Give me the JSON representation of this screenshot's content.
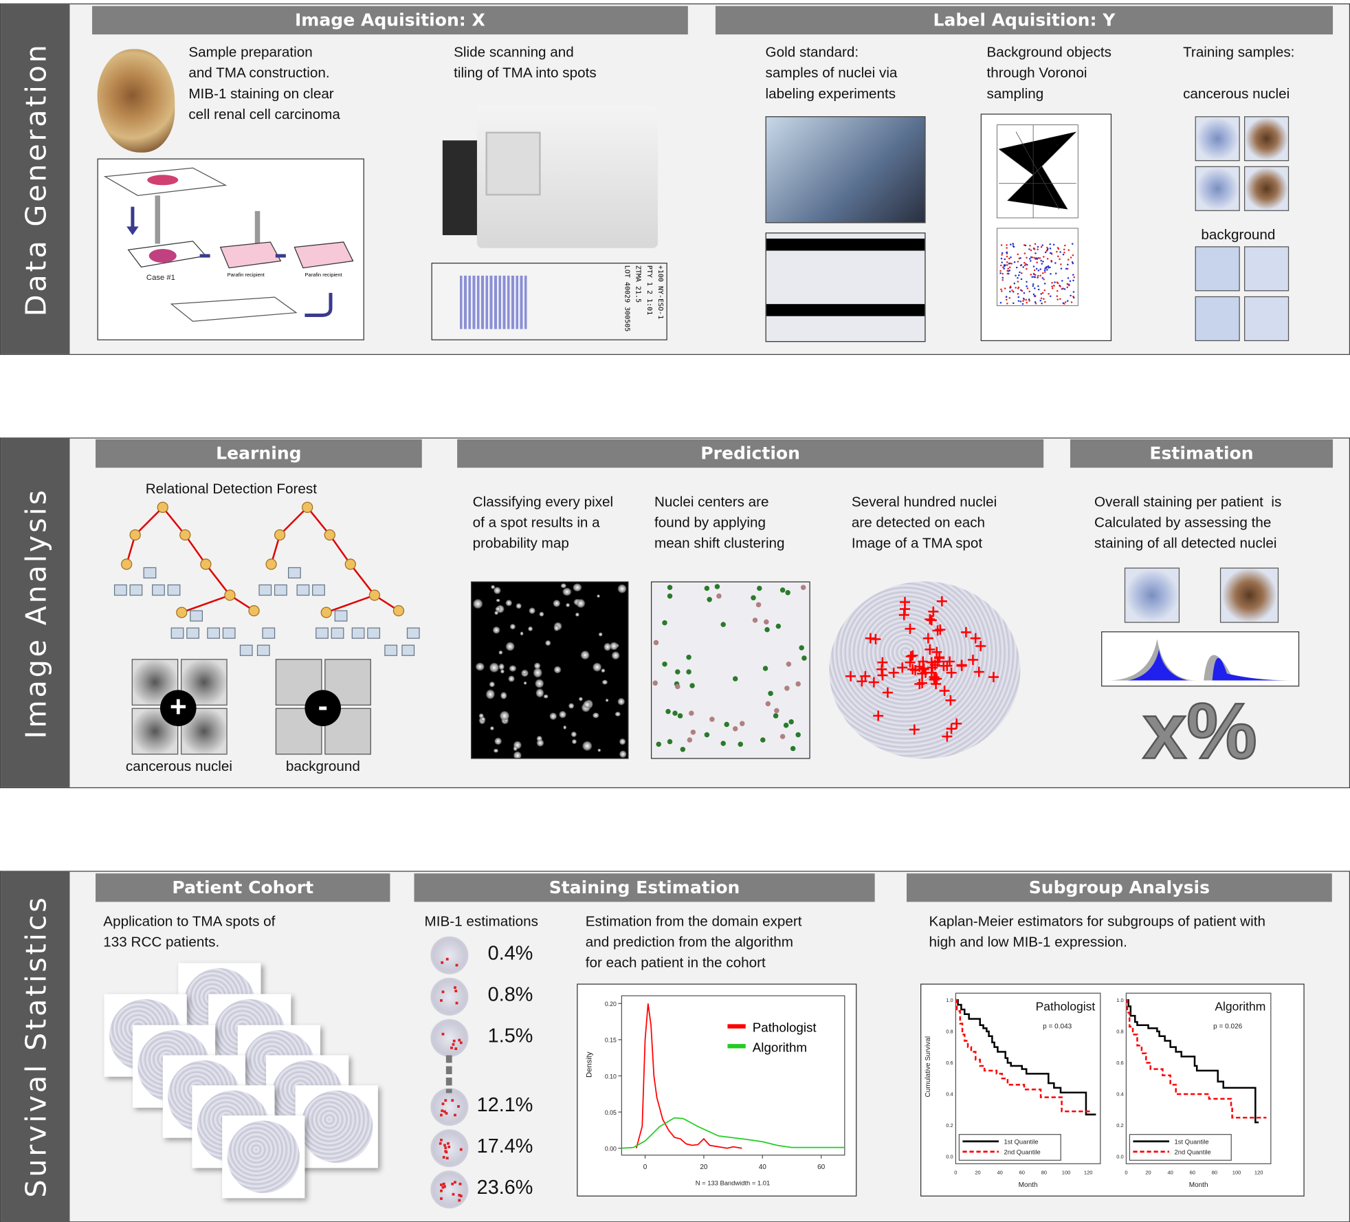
{
  "panels": {
    "data_generation": {
      "side_label": "Data Generation",
      "headers": {
        "image": "Image Aquisition: X",
        "label": "Label Aquisition: Y"
      },
      "texts": {
        "sample_prep": "Sample preparation\nand TMA construction.\nMIB-1 staining on clear\ncell renal cell carcinoma",
        "slide_scan": "Slide scanning and\ntiling of TMA into spots",
        "gold": "Gold standard:\nsamples of nuclei via\nlabeling experiments",
        "background_obj": "Background objects\nthrough Voronoi\nsampling",
        "training": "Training samples:",
        "cancerous": "cancerous nuclei",
        "background": "background"
      },
      "diagram_labels": {
        "case": "Case #1",
        "parafin1": "Parafin recipient",
        "parafin2": "Parafin recipient"
      },
      "slide_label": "+100 NY-ESO-1\nPTY 1 2 1:01\nZTMA 21.5\nLOT 40029 300505"
    },
    "image_analysis": {
      "side_label": "Image Analysis",
      "headers": {
        "learning": "Learning",
        "prediction": "Prediction",
        "estimation": "Estimation"
      },
      "texts": {
        "forest": "Relational Detection Forest",
        "cancerous": "cancerous nuclei",
        "background": "background",
        "classify": "Classifying every pixel\nof a spot results in a\nprobability map",
        "centers": "Nuclei centers are\nfound by applying\nmean shift clustering",
        "several": "Several hundred nuclei\nare detected on each\nImage of a TMA spot",
        "overall": "Overall staining per patient  is\nCalculated by assessing the\nstaining of all detected nuclei",
        "result": "x%"
      },
      "plus": "+",
      "minus": "-"
    },
    "survival": {
      "side_label": "Survival Statistics",
      "headers": {
        "cohort": "Patient Cohort",
        "staining": "Staining Estimation",
        "subgroup": "Subgroup Analysis"
      },
      "texts": {
        "application": "Application to TMA spots of\n133 RCC patients.",
        "mib": "MIB-1 estimations",
        "estimation": "Estimation from the domain expert\nand prediction from the algorithm\nfor each patient in the cohort",
        "km": "Kaplan-Meier estimators for subgroups of patient with\nhigh and low MIB-1 expression."
      },
      "estimations": [
        "0.4%",
        "0.8%",
        "1.5%",
        "12.1%",
        "17.4%",
        "23.6%"
      ]
    }
  },
  "chart_data": [
    {
      "type": "line",
      "title": "",
      "xlabel": "N = 133   Bandwidth = 1.01",
      "ylabel": "Density",
      "xlim": [
        -8,
        68
      ],
      "ylim": [
        0,
        0.2
      ],
      "xticks": [
        "0",
        "20",
        "40",
        "60"
      ],
      "yticks": [
        "0.00",
        "0.05",
        "0.10",
        "0.15",
        "0.20"
      ],
      "legend": "top-right",
      "series": [
        {
          "name": "Pathologist",
          "color": "#ff0000",
          "points": [
            [
              -3,
              0
            ],
            [
              -1,
              0.03
            ],
            [
              0,
              0.15
            ],
            [
              1,
              0.2
            ],
            [
              2,
              0.17
            ],
            [
              3,
              0.1
            ],
            [
              4,
              0.07
            ],
            [
              6,
              0.04
            ],
            [
              8,
              0.025
            ],
            [
              10,
              0.015
            ],
            [
              12,
              0.013
            ],
            [
              14,
              0.006
            ],
            [
              16,
              0.004
            ],
            [
              18,
              0.005
            ],
            [
              20,
              0.013
            ],
            [
              22,
              0.004
            ],
            [
              25,
              0.002
            ],
            [
              28,
              0
            ],
            [
              30,
              0.002
            ],
            [
              33,
              0
            ]
          ]
        },
        {
          "name": "Algorithm",
          "color": "#22cc22",
          "points": [
            [
              -8,
              0
            ],
            [
              -4,
              0.001
            ],
            [
              0,
              0.01
            ],
            [
              5,
              0.03
            ],
            [
              10,
              0.042
            ],
            [
              13,
              0.041
            ],
            [
              18,
              0.03
            ],
            [
              25,
              0.017
            ],
            [
              35,
              0.012
            ],
            [
              40,
              0.009
            ],
            [
              45,
              0.004
            ],
            [
              50,
              0.001
            ],
            [
              68,
              0.001
            ]
          ]
        }
      ]
    },
    {
      "type": "line",
      "title": "Pathologist",
      "annotation": "p = 0.043",
      "xlabel": "Month",
      "ylabel": "Cumulative Survival",
      "xlim": [
        0,
        131
      ],
      "ylim": [
        0,
        1
      ],
      "xticks": [
        "0",
        "20",
        "40",
        "60",
        "80",
        "100",
        "120"
      ],
      "yticks": [
        "0.0",
        "0.2",
        "0.4",
        "0.6",
        "0.8",
        "1.0"
      ],
      "legend": "bottom-left",
      "series": [
        {
          "name": "1st Quantile",
          "color": "#000000",
          "points": [
            [
              0,
              1
            ],
            [
              2,
              0.97
            ],
            [
              5,
              0.94
            ],
            [
              8,
              0.91
            ],
            [
              12,
              0.88
            ],
            [
              20,
              0.88
            ],
            [
              22,
              0.84
            ],
            [
              25,
              0.82
            ],
            [
              28,
              0.8
            ],
            [
              30,
              0.77
            ],
            [
              33,
              0.73
            ],
            [
              35,
              0.7
            ],
            [
              38,
              0.67
            ],
            [
              45,
              0.63
            ],
            [
              47,
              0.6
            ],
            [
              50,
              0.58
            ],
            [
              60,
              0.56
            ],
            [
              64,
              0.53
            ],
            [
              84,
              0.47
            ],
            [
              89,
              0.44
            ],
            [
              95,
              0.41
            ],
            [
              118,
              0.27
            ],
            [
              127,
              0.27
            ]
          ]
        },
        {
          "name": "2nd Quantile",
          "color": "#ff0000",
          "points": [
            [
              0,
              1
            ],
            [
              1,
              0.93
            ],
            [
              4,
              0.85
            ],
            [
              6,
              0.78
            ],
            [
              8,
              0.74
            ],
            [
              11,
              0.7
            ],
            [
              14,
              0.67
            ],
            [
              18,
              0.62
            ],
            [
              22,
              0.58
            ],
            [
              26,
              0.55
            ],
            [
              37,
              0.53
            ],
            [
              42,
              0.5
            ],
            [
              47,
              0.46
            ],
            [
              62,
              0.43
            ],
            [
              77,
              0.38
            ],
            [
              96,
              0.29
            ],
            [
              122,
              0.29
            ]
          ]
        }
      ]
    },
    {
      "type": "line",
      "title": "Algorithm",
      "annotation": "p = 0.026",
      "xlabel": "Month",
      "ylabel": "",
      "xlim": [
        0,
        131
      ],
      "ylim": [
        0,
        1
      ],
      "xticks": [
        "0",
        "20",
        "40",
        "60",
        "80",
        "100",
        "120"
      ],
      "yticks": [
        "0.0",
        "0.2",
        "0.4",
        "0.6",
        "0.8",
        "1.0"
      ],
      "legend": "bottom-left",
      "series": [
        {
          "name": "1st Quantile",
          "color": "#000000",
          "points": [
            [
              0,
              1
            ],
            [
              2,
              0.96
            ],
            [
              4,
              0.9
            ],
            [
              8,
              0.86
            ],
            [
              10,
              0.84
            ],
            [
              20,
              0.82
            ],
            [
              28,
              0.8
            ],
            [
              30,
              0.77
            ],
            [
              35,
              0.74
            ],
            [
              40,
              0.7
            ],
            [
              45,
              0.67
            ],
            [
              50,
              0.64
            ],
            [
              62,
              0.58
            ],
            [
              64,
              0.55
            ],
            [
              83,
              0.48
            ],
            [
              88,
              0.44
            ],
            [
              117,
              0.22
            ],
            [
              120,
              0.22
            ]
          ]
        },
        {
          "name": "2nd Quantile",
          "color": "#ff0000",
          "points": [
            [
              0,
              1
            ],
            [
              1,
              0.92
            ],
            [
              3,
              0.83
            ],
            [
              6,
              0.78
            ],
            [
              10,
              0.71
            ],
            [
              14,
              0.66
            ],
            [
              18,
              0.6
            ],
            [
              22,
              0.56
            ],
            [
              33,
              0.52
            ],
            [
              40,
              0.46
            ],
            [
              45,
              0.4
            ],
            [
              75,
              0.37
            ],
            [
              95,
              0.32
            ],
            [
              96,
              0.25
            ],
            [
              127,
              0.25
            ]
          ]
        }
      ]
    }
  ]
}
